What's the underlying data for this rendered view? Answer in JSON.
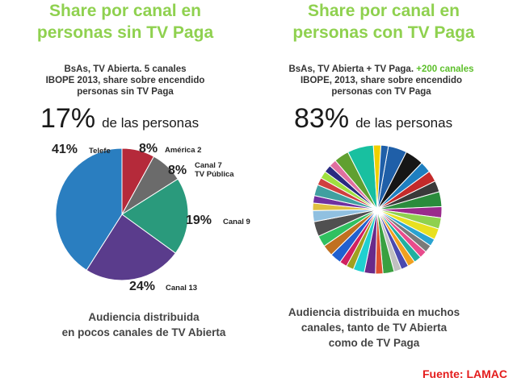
{
  "left": {
    "title_line1": "Share por canal en",
    "title_line2": "personas sin TV Paga",
    "sub_line1": "BsAs, TV Abierta. 5 canales",
    "sub_line2": "IBOPE 2013, share sobre encendido",
    "sub_line3": "personas sin TV Paga",
    "big_pct": "17%",
    "big_text": "de las personas",
    "caption_line1": "Audiencia distribuida",
    "caption_line2": "en pocos canales de TV Abierta"
  },
  "right": {
    "title_line1": "Share por canal en",
    "title_line2": "personas con TV Paga",
    "sub_line1a": "BsAs, TV Abierta + TV Paga.",
    "sub_line1b": "+200 canales",
    "sub_line2": "IBOPE, 2013, share sobre encendido",
    "sub_line3": "personas con TV Paga",
    "big_pct": "83%",
    "big_text": "de las personas",
    "caption_line1": "Audiencia distribuida en muchos",
    "caption_line2": "canales, tanto de TV Abierta",
    "caption_line3": "como de TV Paga"
  },
  "source": "Fuente: LAMAC",
  "chart_data": [
    {
      "type": "pie",
      "labels": [
        "Telefe",
        "América 2",
        "Canal 7 TV Pública",
        "Canal 9",
        "Canal 13"
      ],
      "values": [
        41,
        8,
        8,
        19,
        24
      ],
      "value_labels": [
        "41%",
        "8%",
        "8%",
        "19%",
        "24%"
      ],
      "name_labels": [
        "Telefe",
        "América 2",
        "Canal 7",
        "TV Pública",
        "Canal 9",
        "Canal 13"
      ],
      "colors": [
        "#2a7ec0",
        "#b52a3a",
        "#6b6b6b",
        "#2a9a7c",
        "#5a3c8c"
      ]
    },
    {
      "type": "pie",
      "values": [
        5,
        5,
        3,
        3,
        3,
        4,
        3,
        3,
        3,
        2,
        2,
        2,
        2,
        2,
        2,
        2,
        3,
        2,
        3,
        3,
        2,
        2,
        3,
        3,
        3,
        4,
        3,
        2,
        2,
        3,
        2,
        2,
        2,
        2,
        4,
        7,
        2,
        2
      ],
      "colors": [
        "#1f5fa8",
        "#161616",
        "#1e7fc0",
        "#c42a2a",
        "#3a3a3a",
        "#2a8c3c",
        "#9a2a8c",
        "#8fd14f",
        "#e8e020",
        "#2aa3d0",
        "#7a7a7a",
        "#e84c8c",
        "#20b0a0",
        "#f0a020",
        "#4a4ab0",
        "#c0c0c0",
        "#3aa040",
        "#e05030",
        "#6a2a8a",
        "#20d0d0",
        "#a0a020",
        "#d02060",
        "#2060d0",
        "#c07020",
        "#30c060",
        "#505050",
        "#90c0e0",
        "#e0c040",
        "#7030a0",
        "#40a0a0",
        "#d04040",
        "#a0e040",
        "#2a2a80",
        "#e070a0",
        "#60a030",
        "#18c0a0",
        "#f0d000",
        "#1f5fa8"
      ]
    }
  ]
}
